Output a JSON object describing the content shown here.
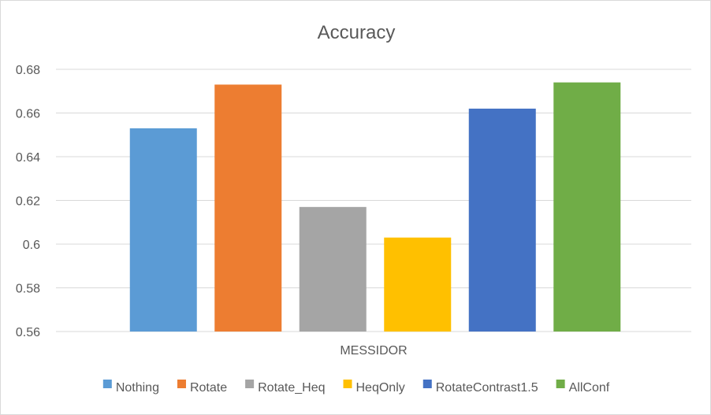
{
  "chart_data": {
    "type": "bar",
    "title": "Accuracy",
    "categories": [
      "MESSIDOR"
    ],
    "xlabel": "",
    "ylabel": "",
    "ylim": [
      0.56,
      0.68
    ],
    "yticks": [
      "0.56",
      "0.58",
      "0.6",
      "0.62",
      "0.64",
      "0.66",
      "0.68"
    ],
    "grid": true,
    "legend_position": "bottom",
    "series": [
      {
        "name": "Nothing",
        "values": [
          0.653
        ],
        "color": "#5b9bd5"
      },
      {
        "name": "Rotate",
        "values": [
          0.673
        ],
        "color": "#ed7d31"
      },
      {
        "name": "Rotate_Heq",
        "values": [
          0.617
        ],
        "color": "#a5a5a5"
      },
      {
        "name": "HeqOnly",
        "values": [
          0.603
        ],
        "color": "#ffc000"
      },
      {
        "name": "RotateContrast1.5",
        "values": [
          0.662
        ],
        "color": "#4472c4"
      },
      {
        "name": "AllConf",
        "values": [
          0.674
        ],
        "color": "#70ad47"
      }
    ]
  }
}
